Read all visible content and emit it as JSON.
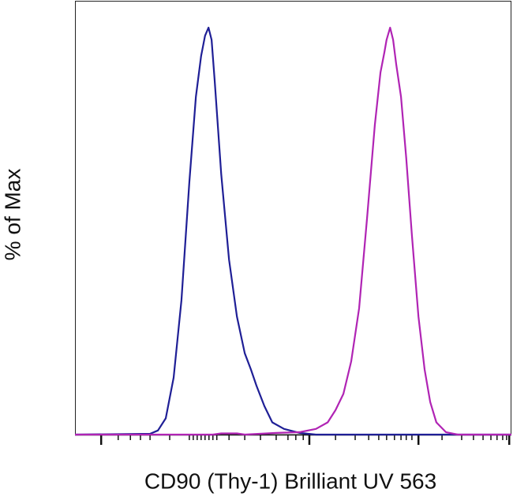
{
  "chart_data": {
    "type": "line",
    "xlabel": "CD90 (Thy-1) Brilliant UV 563",
    "ylabel": "% of Max",
    "xlim": [
      0,
      100
    ],
    "ylim": [
      0,
      100
    ],
    "xticks": [
      6.0,
      53.7,
      78.7,
      99.5
    ],
    "xminorticks": [
      9.9,
      12.7,
      15.0,
      17.2,
      21.7,
      26.2,
      27.1,
      28.0,
      28.9,
      29.8,
      30.7,
      31.6,
      32.5,
      35.3,
      38.9,
      42.5,
      46.1,
      48.8,
      50.6,
      52.3,
      59.7,
      64.2,
      67.3,
      69.6,
      71.4,
      73.2,
      74.7,
      75.9,
      77.2,
      84.1,
      88.6,
      91.3,
      93.5,
      95.3,
      96.7,
      98.0,
      98.9
    ],
    "series": [
      {
        "color": "#1f1f96",
        "x": [
          0,
          17.2,
          19.0,
          20.8,
          22.6,
          24.4,
          26.2,
          27.7,
          28.9,
          29.8,
          30.6,
          31.3,
          32.0,
          33.5,
          35.3,
          37.1,
          38.9,
          40.3,
          41.6,
          43.4,
          45.2,
          47.9,
          51.5,
          55.2,
          100
        ],
        "values": [
          0,
          0.2,
          1,
          4,
          14,
          33,
          62,
          83,
          93,
          98,
          100,
          97,
          87,
          64,
          43,
          29,
          20,
          16,
          12,
          7,
          3,
          1.4,
          0.4,
          0,
          0
        ]
      },
      {
        "color": "#b024b4",
        "x": [
          0,
          31.6,
          33.5,
          37.1,
          38.9,
          46.1,
          51.5,
          55.2,
          57.9,
          59.7,
          61.5,
          63.3,
          65.1,
          66.9,
          68.7,
          70.0,
          70.9,
          71.4,
          72.2,
          72.9,
          73.6,
          74.7,
          75.9,
          77.2,
          78.7,
          80.1,
          81.4,
          82.8,
          85.0,
          87.7,
          100
        ],
        "values": [
          0,
          0,
          0.3,
          0.3,
          0,
          0.4,
          0.6,
          1.4,
          3,
          6,
          10,
          18,
          31,
          53,
          76,
          89,
          94,
          97,
          100,
          97,
          91,
          83,
          68,
          49,
          29,
          16,
          8,
          3,
          0.6,
          0,
          0
        ]
      }
    ]
  }
}
